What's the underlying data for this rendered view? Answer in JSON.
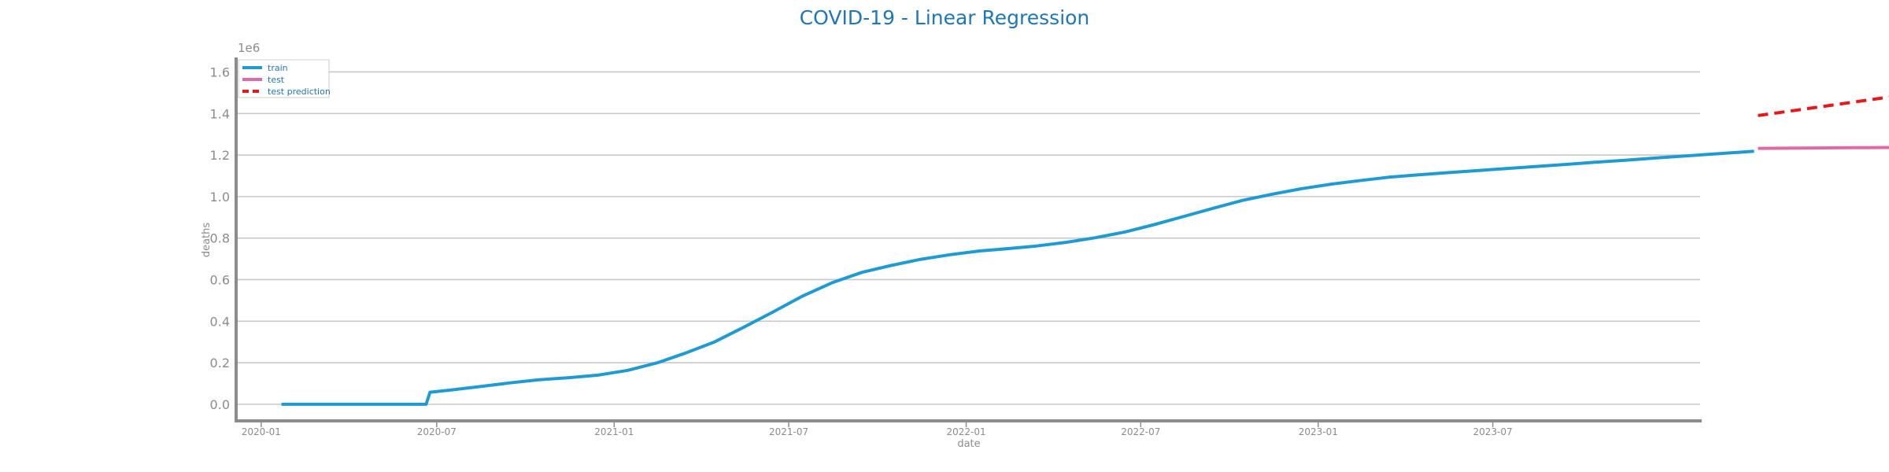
{
  "chart_data": {
    "type": "line",
    "title": "COVID-19 - Linear Regression",
    "xlabel": "date",
    "ylabel": "deaths",
    "y_offset_label": "1e6",
    "ylim": [
      -0.08,
      1.67
    ],
    "yticks": [
      0.0,
      0.2,
      0.4,
      0.6,
      0.8,
      1.0,
      1.2,
      1.4,
      1.6
    ],
    "ytick_labels": [
      "0.0",
      "0.2",
      "0.4",
      "0.6",
      "0.8",
      "1.0",
      "1.2",
      "1.4",
      "1.6"
    ],
    "xlim": [
      "2019-12-06",
      "2024-02-01"
    ],
    "xticks": [
      "2020-01",
      "2020-07",
      "2021-01",
      "2021-07",
      "2022-01",
      "2022-07",
      "2023-01",
      "2023-07"
    ],
    "grid": "horizontal",
    "legend_position": "top-left",
    "series": [
      {
        "name": "train",
        "color": "#1f9bd1",
        "style": "solid",
        "points": [
          [
            "2020-01-22",
            0.0
          ],
          [
            "2020-03-01",
            0.0
          ],
          [
            "2020-04-15",
            0.0
          ],
          [
            "2020-06-10",
            0.0
          ],
          [
            "2020-06-20",
            0.0
          ],
          [
            "2020-06-24",
            0.058
          ],
          [
            "2020-07-15",
            0.068
          ],
          [
            "2020-08-15",
            0.085
          ],
          [
            "2020-09-15",
            0.103
          ],
          [
            "2020-10-15",
            0.118
          ],
          [
            "2020-11-15",
            0.128
          ],
          [
            "2020-12-15",
            0.14
          ],
          [
            "2021-01-15",
            0.163
          ],
          [
            "2021-02-15",
            0.2
          ],
          [
            "2021-03-15",
            0.245
          ],
          [
            "2021-04-15",
            0.3
          ],
          [
            "2021-05-15",
            0.37
          ],
          [
            "2021-06-15",
            0.445
          ],
          [
            "2021-07-15",
            0.52
          ],
          [
            "2021-08-15",
            0.585
          ],
          [
            "2021-09-15",
            0.635
          ],
          [
            "2021-10-15",
            0.668
          ],
          [
            "2021-11-15",
            0.698
          ],
          [
            "2021-12-15",
            0.72
          ],
          [
            "2022-01-15",
            0.738
          ],
          [
            "2022-02-15",
            0.75
          ],
          [
            "2022-03-15",
            0.762
          ],
          [
            "2022-04-15",
            0.78
          ],
          [
            "2022-05-15",
            0.802
          ],
          [
            "2022-06-15",
            0.83
          ],
          [
            "2022-07-15",
            0.865
          ],
          [
            "2022-08-15",
            0.905
          ],
          [
            "2022-09-15",
            0.945
          ],
          [
            "2022-10-15",
            0.982
          ],
          [
            "2022-11-15",
            1.012
          ],
          [
            "2022-12-15",
            1.038
          ],
          [
            "2023-01-15",
            1.06
          ],
          [
            "2023-02-15",
            1.078
          ],
          [
            "2023-03-15",
            1.093
          ],
          [
            "2023-04-15",
            1.105
          ],
          [
            "2023-05-15",
            1.115
          ],
          [
            "2023-06-15",
            1.125
          ],
          [
            "2023-07-15",
            1.135
          ],
          [
            "2023-08-15",
            1.145
          ],
          [
            "2023-09-15",
            1.155
          ],
          [
            "2023-10-15",
            1.165
          ],
          [
            "2023-11-15",
            1.175
          ],
          [
            "2023-12-15",
            1.185
          ],
          [
            "2024-01-15",
            1.195
          ],
          [
            "2024-02-15",
            1.205
          ],
          [
            "2024-03-15",
            1.214
          ],
          [
            "2024-03-28",
            1.218
          ]
        ]
      },
      {
        "name": "test",
        "color": "#e06aa5",
        "style": "solid",
        "points": [
          [
            "2024-04-01",
            1.232
          ],
          [
            "2024-05-01",
            1.233
          ],
          [
            "2024-06-01",
            1.234
          ],
          [
            "2024-07-01",
            1.235
          ],
          [
            "2024-08-01",
            1.236
          ],
          [
            "2024-09-01",
            1.237
          ],
          [
            "2024-10-01",
            1.238
          ],
          [
            "2024-11-01",
            1.24
          ],
          [
            "2024-12-01",
            1.241
          ]
        ]
      },
      {
        "name": "test prediction",
        "color": "#e8171b",
        "style": "dashed",
        "points": [
          [
            "2024-04-01",
            1.39
          ],
          [
            "2024-06-01",
            1.43
          ],
          [
            "2024-08-01",
            1.47
          ],
          [
            "2024-10-01",
            1.51
          ],
          [
            "2024-12-01",
            1.55
          ]
        ]
      }
    ]
  }
}
